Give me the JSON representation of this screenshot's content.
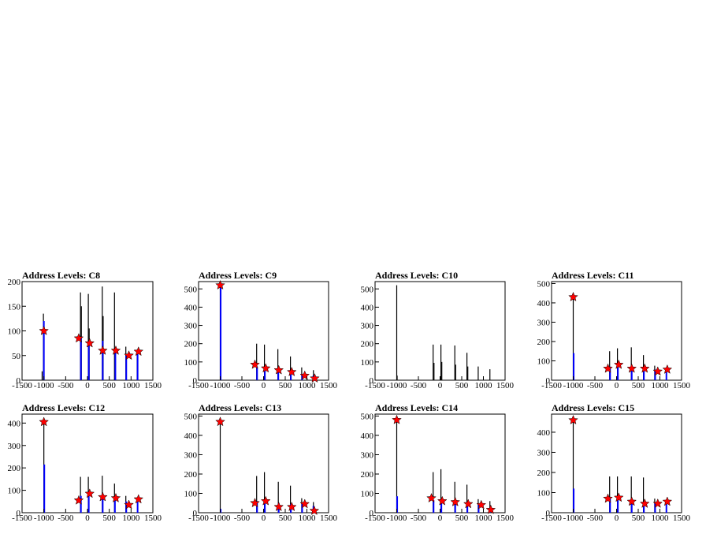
{
  "colors": {
    "background": "#ffffff",
    "frame": "#000000",
    "histogram_black": "#000000",
    "histogram_blue": "#0000ff",
    "marker_fill": "#ff0000",
    "marker_edge": "#000000"
  },
  "chart_data": [
    {
      "type": "bar",
      "title": "Address Levels: C8",
      "xlim": [
        -1500,
        1500
      ],
      "ylim": [
        0,
        200
      ],
      "xticks": [
        -1500,
        -1000,
        -500,
        0,
        500,
        1000,
        1500
      ],
      "xtick_labels": [
        "-1500",
        "-1000",
        "-500",
        "0",
        "500",
        "1000",
        "1500"
      ],
      "yticks": [
        0,
        50,
        100,
        150,
        200
      ],
      "ytick_labels": [
        "0",
        "50",
        "100",
        "150",
        "200"
      ],
      "black_bars": [
        {
          "x": -1040,
          "y": 18
        },
        {
          "x": -1010,
          "y": 135
        },
        {
          "x": -160,
          "y": 178
        },
        {
          "x": -140,
          "y": 150
        },
        {
          "x": 20,
          "y": 175
        },
        {
          "x": 40,
          "y": 105
        },
        {
          "x": 340,
          "y": 190
        },
        {
          "x": 360,
          "y": 130
        },
        {
          "x": 620,
          "y": 178
        },
        {
          "x": 880,
          "y": 68
        },
        {
          "x": 1140,
          "y": 60
        }
      ],
      "blue_bars": [
        {
          "x": -1000,
          "y": 120
        },
        {
          "x": -150,
          "y": 85
        },
        {
          "x": 30,
          "y": 75
        },
        {
          "x": 350,
          "y": 80
        },
        {
          "x": 640,
          "y": 60
        },
        {
          "x": 890,
          "y": 50
        },
        {
          "x": 1150,
          "y": 55
        }
      ],
      "markers": [
        {
          "x": -1000,
          "y": 100
        },
        {
          "x": -200,
          "y": 85
        },
        {
          "x": 50,
          "y": 75
        },
        {
          "x": 350,
          "y": 60
        },
        {
          "x": 650,
          "y": 60
        },
        {
          "x": 950,
          "y": 50
        },
        {
          "x": 1170,
          "y": 58
        }
      ]
    },
    {
      "type": "bar",
      "title": "Address Levels: C9",
      "xlim": [
        -1500,
        1500
      ],
      "ylim": [
        0,
        540
      ],
      "xticks": [
        -1500,
        -1000,
        -500,
        0,
        500,
        1000,
        1500
      ],
      "xtick_labels": [
        "-1500",
        "-1000",
        "-500",
        "0",
        "500",
        "1000",
        "1500"
      ],
      "yticks": [
        0,
        100,
        200,
        300,
        400,
        500
      ],
      "ytick_labels": [
        "0",
        "100",
        "200",
        "300",
        "400",
        "500"
      ],
      "black_bars": [
        {
          "x": -1000,
          "y": 520
        },
        {
          "x": -160,
          "y": 200
        },
        {
          "x": 20,
          "y": 195
        },
        {
          "x": 330,
          "y": 170
        },
        {
          "x": 620,
          "y": 130
        },
        {
          "x": 880,
          "y": 70
        },
        {
          "x": 1150,
          "y": 55
        }
      ],
      "blue_bars": [
        {
          "x": -990,
          "y": 510
        },
        {
          "x": -150,
          "y": 75
        },
        {
          "x": 30,
          "y": 55
        },
        {
          "x": 340,
          "y": 50
        },
        {
          "x": 630,
          "y": 45
        },
        {
          "x": 890,
          "y": 35
        },
        {
          "x": 1150,
          "y": 25
        }
      ],
      "markers": [
        {
          "x": -1000,
          "y": 520
        },
        {
          "x": -200,
          "y": 85
        },
        {
          "x": 50,
          "y": 65
        },
        {
          "x": 350,
          "y": 55
        },
        {
          "x": 650,
          "y": 45
        },
        {
          "x": 950,
          "y": 25
        },
        {
          "x": 1180,
          "y": 10
        }
      ]
    },
    {
      "type": "bar",
      "title": "Address Levels: C10",
      "xlim": [
        -1500,
        1500
      ],
      "ylim": [
        0,
        540
      ],
      "xticks": [
        -1500,
        -1000,
        -500,
        0,
        500,
        1000,
        1500
      ],
      "xtick_labels": [
        "-1500",
        "-1000",
        "-500",
        "0",
        "500",
        "1000",
        "1500"
      ],
      "yticks": [
        0,
        100,
        200,
        300,
        400,
        500
      ],
      "ytick_labels": [
        "0",
        "100",
        "200",
        "300",
        "400",
        "500"
      ],
      "black_bars": [
        {
          "x": -1000,
          "y": 520
        },
        {
          "x": -990,
          "y": 25
        },
        {
          "x": -160,
          "y": 195
        },
        {
          "x": -140,
          "y": 95
        },
        {
          "x": 20,
          "y": 195
        },
        {
          "x": 40,
          "y": 100
        },
        {
          "x": 340,
          "y": 190
        },
        {
          "x": 360,
          "y": 85
        },
        {
          "x": 620,
          "y": 150
        },
        {
          "x": 640,
          "y": 75
        },
        {
          "x": 880,
          "y": 75
        },
        {
          "x": 1150,
          "y": 60
        }
      ],
      "blue_bars": [],
      "markers": []
    },
    {
      "type": "bar",
      "title": "Address Levels: C11",
      "xlim": [
        -1500,
        1500
      ],
      "ylim": [
        0,
        510
      ],
      "xticks": [
        -1500,
        -1000,
        -500,
        0,
        500,
        1000,
        1500
      ],
      "xtick_labels": [
        "-1500",
        "-1000",
        "-500",
        "0",
        "500",
        "1000",
        "1500"
      ],
      "yticks": [
        0,
        100,
        200,
        300,
        400,
        500
      ],
      "ytick_labels": [
        "0",
        "100",
        "200",
        "300",
        "400",
        "500"
      ],
      "black_bars": [
        {
          "x": -1000,
          "y": 450
        },
        {
          "x": -160,
          "y": 150
        },
        {
          "x": 20,
          "y": 165
        },
        {
          "x": 340,
          "y": 170
        },
        {
          "x": 620,
          "y": 130
        },
        {
          "x": 880,
          "y": 75
        },
        {
          "x": 1150,
          "y": 55
        }
      ],
      "blue_bars": [
        {
          "x": -990,
          "y": 140
        },
        {
          "x": -150,
          "y": 70
        },
        {
          "x": 30,
          "y": 80
        },
        {
          "x": 350,
          "y": 75
        },
        {
          "x": 630,
          "y": 60
        },
        {
          "x": 890,
          "y": 55
        },
        {
          "x": 1150,
          "y": 50
        }
      ],
      "markers": [
        {
          "x": -1000,
          "y": 430
        },
        {
          "x": -200,
          "y": 60
        },
        {
          "x": 50,
          "y": 80
        },
        {
          "x": 350,
          "y": 60
        },
        {
          "x": 650,
          "y": 60
        },
        {
          "x": 950,
          "y": 45
        },
        {
          "x": 1170,
          "y": 55
        }
      ]
    },
    {
      "type": "bar",
      "title": "Address Levels: C12",
      "xlim": [
        -1500,
        1500
      ],
      "ylim": [
        0,
        440
      ],
      "xticks": [
        -1500,
        -1000,
        -500,
        0,
        500,
        1000,
        1500
      ],
      "xtick_labels": [
        "-1500",
        "-1000",
        "-500",
        "0",
        "500",
        "1000",
        "1500"
      ],
      "yticks": [
        0,
        100,
        200,
        300,
        400
      ],
      "ytick_labels": [
        "0",
        "100",
        "200",
        "300",
        "400"
      ],
      "black_bars": [
        {
          "x": -1000,
          "y": 410
        },
        {
          "x": -160,
          "y": 160
        },
        {
          "x": 20,
          "y": 160
        },
        {
          "x": 340,
          "y": 165
        },
        {
          "x": 620,
          "y": 130
        },
        {
          "x": 880,
          "y": 75
        },
        {
          "x": 1150,
          "y": 55
        }
      ],
      "blue_bars": [
        {
          "x": -990,
          "y": 215
        },
        {
          "x": -150,
          "y": 75
        },
        {
          "x": 30,
          "y": 80
        },
        {
          "x": 350,
          "y": 75
        },
        {
          "x": 630,
          "y": 60
        },
        {
          "x": 890,
          "y": 50
        },
        {
          "x": 1150,
          "y": 55
        }
      ],
      "markers": [
        {
          "x": -1000,
          "y": 405
        },
        {
          "x": -200,
          "y": 55
        },
        {
          "x": 50,
          "y": 85
        },
        {
          "x": 350,
          "y": 70
        },
        {
          "x": 650,
          "y": 65
        },
        {
          "x": 950,
          "y": 35
        },
        {
          "x": 1170,
          "y": 60
        }
      ]
    },
    {
      "type": "bar",
      "title": "Address Levels: C13",
      "xlim": [
        -1500,
        1500
      ],
      "ylim": [
        0,
        510
      ],
      "xticks": [
        -1500,
        -1000,
        -500,
        0,
        500,
        1000,
        1500
      ],
      "xtick_labels": [
        "-1500",
        "-1000",
        "-500",
        "0",
        "500",
        "1000",
        "1500"
      ],
      "yticks": [
        0,
        100,
        200,
        300,
        400,
        500
      ],
      "ytick_labels": [
        "0",
        "100",
        "200",
        "300",
        "400",
        "500"
      ],
      "black_bars": [
        {
          "x": -1000,
          "y": 470
        },
        {
          "x": -160,
          "y": 190
        },
        {
          "x": 20,
          "y": 210
        },
        {
          "x": 340,
          "y": 160
        },
        {
          "x": 620,
          "y": 140
        },
        {
          "x": 880,
          "y": 75
        },
        {
          "x": 1150,
          "y": 55
        }
      ],
      "blue_bars": [
        {
          "x": -990,
          "y": 20
        },
        {
          "x": -150,
          "y": 60
        },
        {
          "x": 30,
          "y": 60
        },
        {
          "x": 350,
          "y": 50
        },
        {
          "x": 630,
          "y": 45
        },
        {
          "x": 890,
          "y": 45
        },
        {
          "x": 1150,
          "y": 35
        }
      ],
      "markers": [
        {
          "x": -1000,
          "y": 470
        },
        {
          "x": -200,
          "y": 50
        },
        {
          "x": 50,
          "y": 60
        },
        {
          "x": 350,
          "y": 30
        },
        {
          "x": 650,
          "y": 30
        },
        {
          "x": 950,
          "y": 45
        },
        {
          "x": 1170,
          "y": 10
        }
      ]
    },
    {
      "type": "bar",
      "title": "Address Levels: C14",
      "xlim": [
        -1500,
        1500
      ],
      "ylim": [
        0,
        510
      ],
      "xticks": [
        -1500,
        -1000,
        -500,
        0,
        500,
        1000,
        1500
      ],
      "xtick_labels": [
        "-1500",
        "-1000",
        "-500",
        "0",
        "500",
        "1000",
        "1500"
      ],
      "yticks": [
        0,
        100,
        200,
        300,
        400,
        500
      ],
      "ytick_labels": [
        "0",
        "100",
        "200",
        "300",
        "400",
        "500"
      ],
      "black_bars": [
        {
          "x": -1000,
          "y": 485
        },
        {
          "x": -160,
          "y": 210
        },
        {
          "x": 20,
          "y": 225
        },
        {
          "x": 340,
          "y": 160
        },
        {
          "x": 620,
          "y": 145
        },
        {
          "x": 880,
          "y": 70
        },
        {
          "x": 1150,
          "y": 60
        }
      ],
      "blue_bars": [
        {
          "x": -990,
          "y": 85
        },
        {
          "x": -150,
          "y": 65
        },
        {
          "x": 30,
          "y": 55
        },
        {
          "x": 350,
          "y": 50
        },
        {
          "x": 630,
          "y": 45
        },
        {
          "x": 890,
          "y": 40
        },
        {
          "x": 1150,
          "y": 25
        }
      ],
      "markers": [
        {
          "x": -1000,
          "y": 480
        },
        {
          "x": -200,
          "y": 75
        },
        {
          "x": 50,
          "y": 60
        },
        {
          "x": 350,
          "y": 55
        },
        {
          "x": 650,
          "y": 45
        },
        {
          "x": 950,
          "y": 40
        },
        {
          "x": 1170,
          "y": 15
        }
      ]
    },
    {
      "type": "bar",
      "title": "Address Levels: C15",
      "xlim": [
        -1500,
        1500
      ],
      "ylim": [
        0,
        490
      ],
      "xticks": [
        -1500,
        -1000,
        -500,
        0,
        500,
        1000,
        1500
      ],
      "xtick_labels": [
        "-1500",
        "-1000",
        "-500",
        "0",
        "500",
        "1000",
        "1500"
      ],
      "yticks": [
        0,
        100,
        200,
        300,
        400
      ],
      "ytick_labels": [
        "0",
        "100",
        "200",
        "300",
        "400"
      ],
      "black_bars": [
        {
          "x": -1000,
          "y": 465
        },
        {
          "x": -160,
          "y": 180
        },
        {
          "x": 20,
          "y": 180
        },
        {
          "x": 340,
          "y": 180
        },
        {
          "x": 620,
          "y": 175
        },
        {
          "x": 880,
          "y": 70
        },
        {
          "x": 1150,
          "y": 60
        }
      ],
      "blue_bars": [
        {
          "x": -990,
          "y": 120
        },
        {
          "x": -150,
          "y": 70
        },
        {
          "x": 30,
          "y": 70
        },
        {
          "x": 350,
          "y": 70
        },
        {
          "x": 630,
          "y": 55
        },
        {
          "x": 890,
          "y": 50
        },
        {
          "x": 1150,
          "y": 50
        }
      ],
      "markers": [
        {
          "x": -1000,
          "y": 460
        },
        {
          "x": -200,
          "y": 70
        },
        {
          "x": 50,
          "y": 75
        },
        {
          "x": 350,
          "y": 55
        },
        {
          "x": 650,
          "y": 45
        },
        {
          "x": 950,
          "y": 45
        },
        {
          "x": 1170,
          "y": 55
        }
      ]
    }
  ]
}
